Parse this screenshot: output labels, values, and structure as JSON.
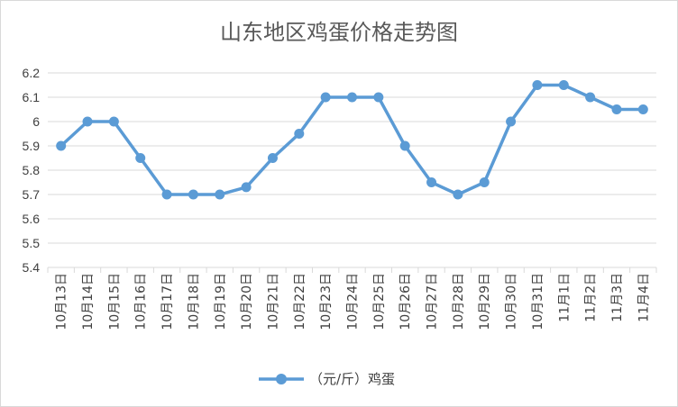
{
  "chart_data": {
    "type": "line",
    "title": "山东地区鸡蛋价格走势图",
    "categories": [
      "10月13日",
      "10月14日",
      "10月15日",
      "10月16日",
      "10月17日",
      "10月18日",
      "10月19日",
      "10月20日",
      "10月21日",
      "10月22日",
      "10月23日",
      "10月24日",
      "10月25日",
      "10月26日",
      "10月27日",
      "10月28日",
      "10月29日",
      "10月30日",
      "10月31日",
      "11月1日",
      "11月2日",
      "11月3日",
      "11月4日"
    ],
    "series": [
      {
        "name": "（元/斤）鸡蛋",
        "color": "#5b9bd5",
        "values": [
          5.9,
          6.0,
          6.0,
          5.85,
          5.7,
          5.7,
          5.7,
          5.73,
          5.85,
          5.95,
          6.1,
          6.1,
          6.1,
          5.9,
          5.75,
          5.7,
          5.75,
          6.0,
          6.15,
          6.15,
          6.1,
          6.05,
          6.05
        ]
      }
    ],
    "yticks": [
      "5.4",
      "5.5",
      "5.6",
      "5.7",
      "5.8",
      "5.9",
      "6",
      "6.1",
      "6.2"
    ],
    "ylim": [
      5.4,
      6.2
    ],
    "grid": true,
    "legend": "bottom",
    "xlabel": "",
    "ylabel": ""
  }
}
